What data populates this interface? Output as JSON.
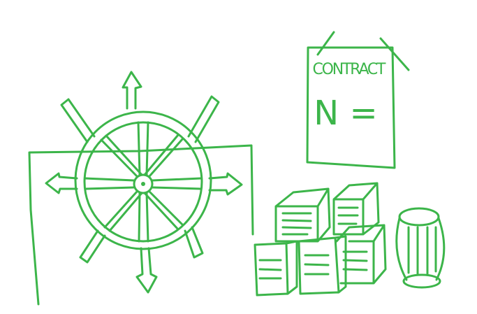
{
  "sign": {
    "title": "CONTRACT",
    "text": "N ="
  }
}
